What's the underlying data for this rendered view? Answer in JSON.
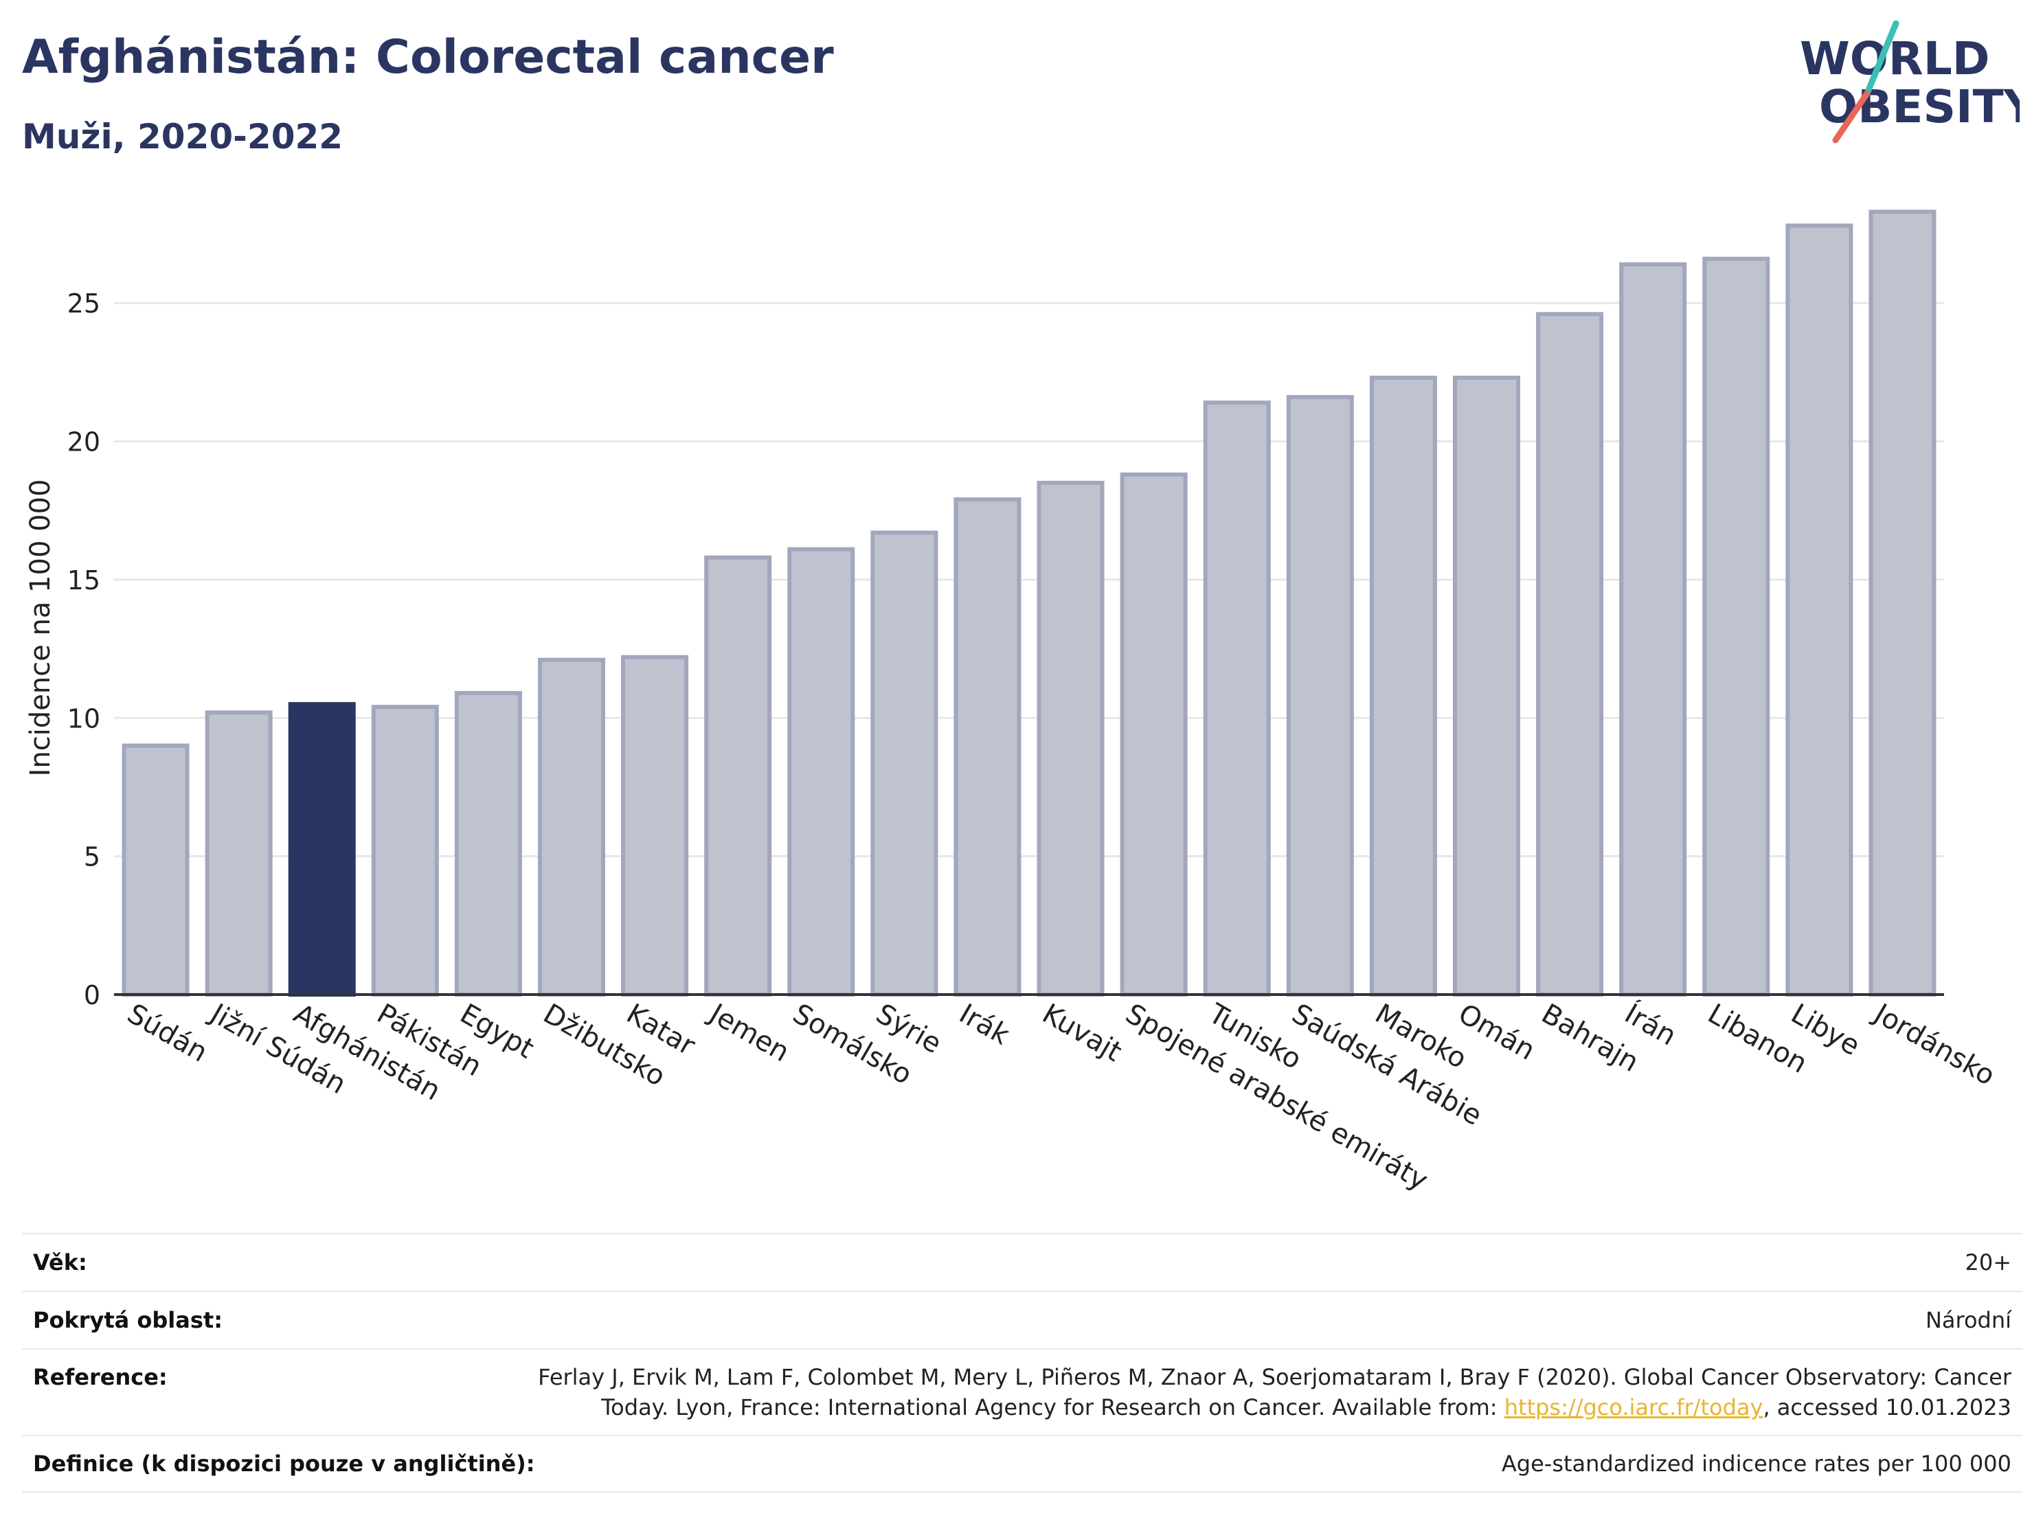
{
  "header": {
    "title": "Afghánistán: Colorectal cancer",
    "subtitle": "Muži, 2020-2022"
  },
  "logo": {
    "line1": "WORLD",
    "line2": "OBESITY",
    "accent_teal": "#3bbfb7",
    "accent_red": "#e8665a",
    "text_color": "#2b3561"
  },
  "chart_data": {
    "type": "bar",
    "title": "Afghánistán: Colorectal cancer",
    "subtitle": "Muži, 2020-2022",
    "ylabel": "Incidence na 100 000",
    "xlabel": "",
    "ylim": [
      0,
      29.5
    ],
    "yticks": [
      0,
      5,
      10,
      15,
      20,
      25
    ],
    "grid": true,
    "highlight_category": "Afghánistán",
    "colors": {
      "bar": "#bfc2cf",
      "bar_border": "#a3a7bd",
      "highlight": "#2b3561"
    },
    "categories": [
      "Súdán",
      "Jižní Súdán",
      "Afghánistán",
      "Pákistán",
      "Egypt",
      "Džibutsko",
      "Katar",
      "Jemen",
      "Somálsko",
      "Sýrie",
      "Irák",
      "Kuvajt",
      "Spojené arabské emiráty",
      "Tunisko",
      "Saúdská Arábie",
      "Maroko",
      "Omán",
      "Bahrajn",
      "Írán",
      "Libanon",
      "Libye",
      "Jordánsko"
    ],
    "values": [
      9.0,
      10.2,
      10.5,
      10.4,
      10.9,
      12.1,
      12.2,
      15.8,
      16.1,
      16.7,
      17.9,
      18.5,
      18.8,
      21.4,
      21.6,
      22.3,
      22.3,
      24.6,
      26.4,
      26.6,
      27.8,
      28.3
    ]
  },
  "meta": {
    "rows": [
      {
        "label": "Věk:",
        "value": "20+"
      },
      {
        "label": "Pokrytá oblast:",
        "value": "Národní"
      },
      {
        "label": "Reference:",
        "value_line1": "Ferlay J, Ervik M, Lam F, Colombet M, Mery L, Piñeros M, Znaor A, Soerjomataram I, Bray F (2020). Global Cancer Observatory: Cancer",
        "value_line2_pre": "Today. Lyon, France: International Agency for Research on Cancer. Available from: ",
        "link": "https://gco.iarc.fr/today",
        "value_line2_post": ", accessed 10.01.2023"
      },
      {
        "label": "Definice (k dispozici pouze v angličtině):",
        "value": "Age-standardized indicence rates per 100 000"
      }
    ]
  }
}
